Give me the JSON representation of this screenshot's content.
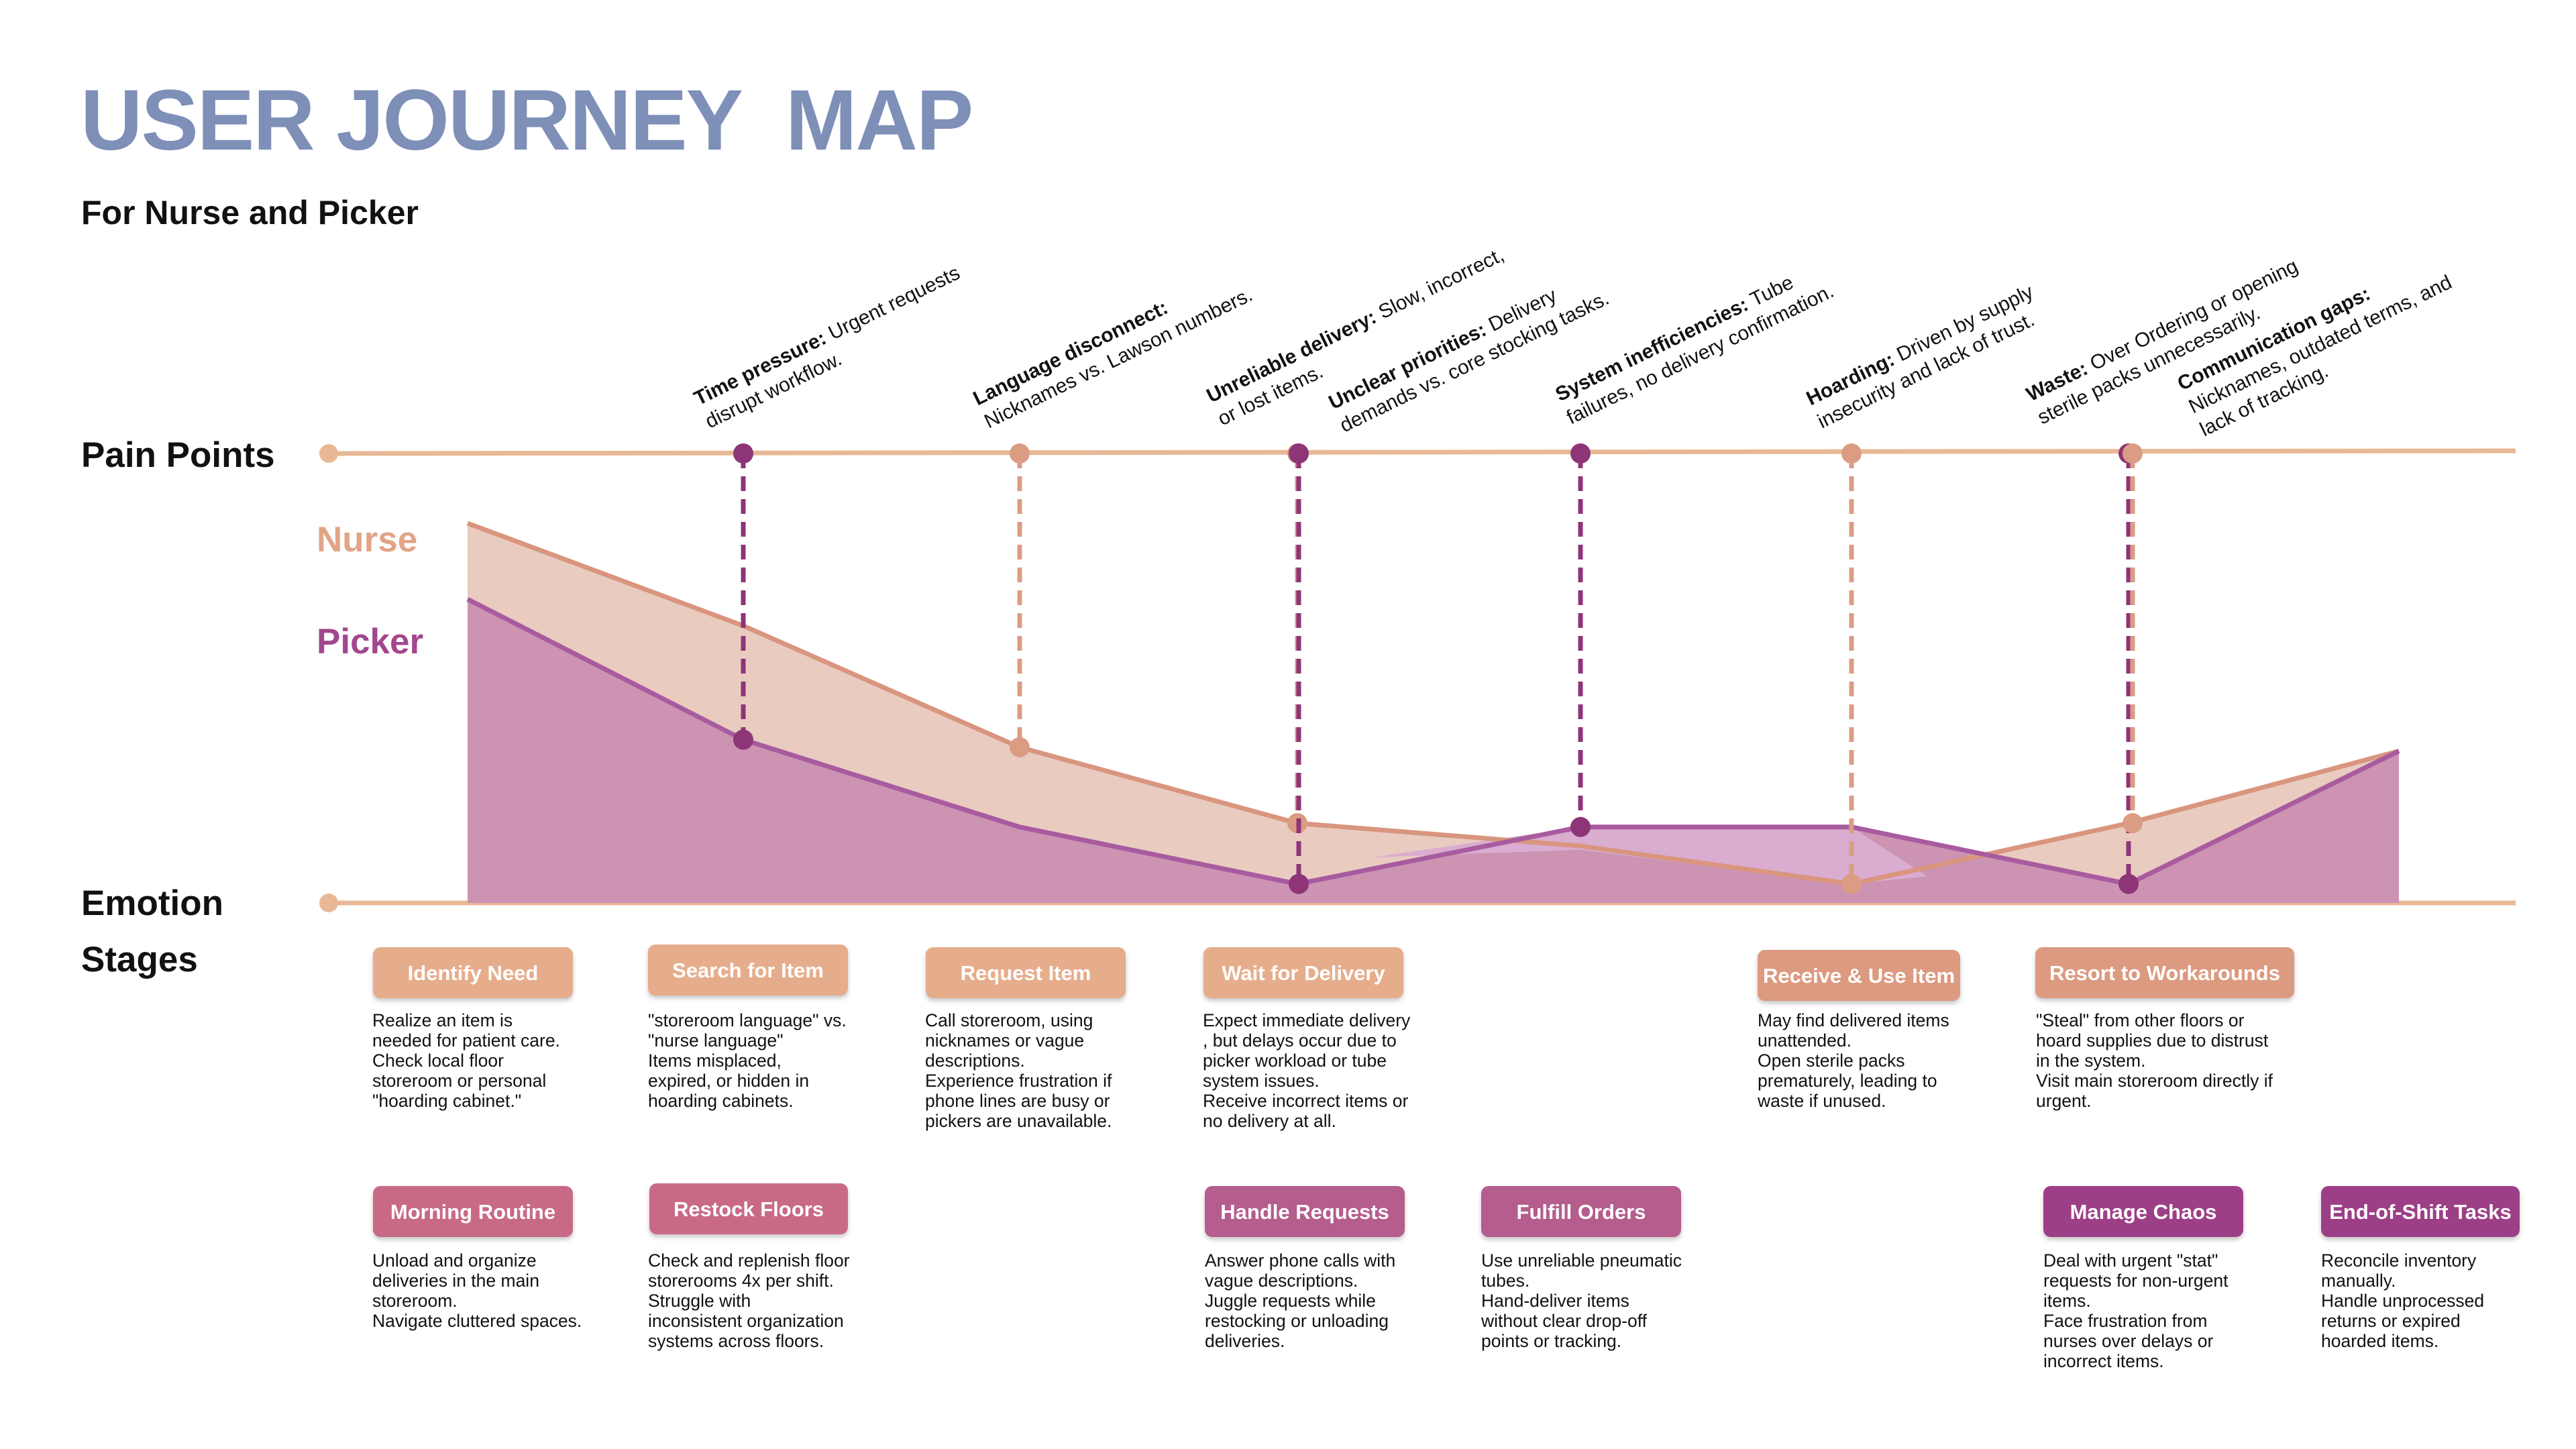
{
  "title": "USER JOURNEY  MAP",
  "subtitle": "For Nurse and Picker",
  "rows": {
    "pain_points": "Pain Points",
    "emotion": "Emotion",
    "stages": "Stages"
  },
  "legend": {
    "nurse": "Nurse",
    "picker": "Picker"
  },
  "colors": {
    "title": "#7e8fb8",
    "axis_line": "#e8b896",
    "nurse_fill": "#e9cbc0",
    "nurse_line": "#d9957e",
    "nurse_marker": "#db9c84",
    "picker_fill": "#cc93b3",
    "picker_raised_fill": "#d9acd0",
    "picker_line": "#a85b9f",
    "picker_marker": "#8e3578"
  },
  "chart_data": {
    "type": "area",
    "x": [
      1,
      2,
      3,
      4,
      5,
      6,
      7,
      8,
      9
    ],
    "y_meaning": "emotion level (0 = lowest, 1 = highest)",
    "series": [
      {
        "name": "Nurse",
        "values": [
          1.0,
          0.73,
          0.41,
          0.21,
          0.15,
          0.05,
          0.21,
          0.4
        ],
        "x": [
          1,
          2,
          3,
          4,
          5,
          6,
          7,
          8
        ]
      },
      {
        "name": "Picker",
        "values": [
          0.8,
          0.43,
          0.2,
          0.05,
          0.2,
          0.2,
          0.05,
          0.4
        ],
        "x": [
          1,
          2,
          3,
          4,
          5,
          6,
          7,
          8
        ]
      }
    ],
    "pain_markers": [
      {
        "pain": "Time pressure:",
        "series": "Picker",
        "x": 2
      },
      {
        "pain": "Language disconnect:",
        "series": "Nurse",
        "x": 3
      },
      {
        "pain": "Unreliable delivery:",
        "series": "Nurse",
        "x": 4
      },
      {
        "pain": "Unclear priorities:",
        "series": "Picker",
        "x": 4
      },
      {
        "pain": "System inefficiencies:",
        "series": "Picker",
        "x": 5
      },
      {
        "pain": "Hoarding:",
        "series": "Nurse",
        "x": 6
      },
      {
        "pain": "Waste:",
        "series": "Picker",
        "x": 7
      },
      {
        "pain": "Communication gaps:",
        "series": "Nurse",
        "x": 7
      }
    ]
  },
  "pain_points": [
    {
      "bold": "Time pressure:",
      "text": " Urgent requests",
      "line2": "disrupt workflow."
    },
    {
      "bold": "Language disconnect:",
      "text": "",
      "line2": "Nicknames vs. Lawson numbers."
    },
    {
      "bold": "Unreliable delivery:",
      "text": " Slow, incorrect,",
      "line2": "or lost items."
    },
    {
      "bold": "Unclear priorities:",
      "text": " Delivery",
      "line2": "demands vs. core stocking tasks."
    },
    {
      "bold": "System inefficiencies:",
      "text": " Tube",
      "line2": "failures, no delivery confirmation."
    },
    {
      "bold": "Hoarding:",
      "text": " Driven by supply",
      "line2": "insecurity and lack of trust."
    },
    {
      "bold": "Waste:",
      "text": " Over Ordering or opening",
      "line2": "sterile packs unnecessarily."
    },
    {
      "bold": "Communication gaps:",
      "text": "",
      "line2": "Nicknames, outdated terms, and",
      "line3": "lack of tracking."
    }
  ],
  "nurse_stages": [
    {
      "label": "Identify Need",
      "lines": [
        "Realize an item is",
        "needed for patient care.",
        "Check local floor",
        "storeroom or personal",
        "\"hoarding cabinet.\""
      ]
    },
    {
      "label": "Search for Item",
      "lines": [
        "\"storeroom language\" vs.",
        "\"nurse language\"",
        "Items misplaced,",
        "expired, or hidden in",
        "hoarding cabinets."
      ]
    },
    {
      "label": "Request Item",
      "lines": [
        "Call storeroom, using",
        "nicknames or vague",
        "descriptions.",
        "Experience frustration if",
        "phone lines are busy or",
        "pickers are unavailable."
      ]
    },
    {
      "label": "Wait for Delivery",
      "lines": [
        "Expect immediate delivery",
        ", but delays occur due to",
        "picker workload or tube",
        "system issues.",
        "Receive incorrect items or",
        "no delivery at all."
      ]
    },
    {
      "label": "Receive & Use Item",
      "lines": [
        "May find delivered items",
        "unattended.",
        "Open sterile packs",
        "prematurely, leading to",
        "waste if unused."
      ]
    },
    {
      "label": "Resort to Workarounds",
      "lines": [
        "\"Steal\" from other floors or",
        "hoard supplies due to distrust",
        "in the system.",
        "Visit main storeroom directly if",
        "urgent."
      ]
    }
  ],
  "picker_stages": [
    {
      "label": "Morning Routine",
      "lines": [
        "Unload and organize",
        "deliveries in the main",
        "storeroom.",
        "Navigate cluttered spaces."
      ]
    },
    {
      "label": "Restock Floors",
      "lines": [
        "Check and replenish floor",
        "storerooms 4x per shift.",
        "Struggle with",
        "inconsistent organization",
        "systems across floors."
      ]
    },
    {
      "label": "Handle Requests",
      "lines": [
        "Answer phone calls with",
        "vague descriptions.",
        "Juggle requests while",
        "restocking or unloading",
        "deliveries."
      ]
    },
    {
      "label": "Fulfill Orders",
      "lines": [
        "Use unreliable pneumatic",
        "tubes.",
        "Hand-deliver items",
        "without clear drop-off",
        "points or tracking."
      ]
    },
    {
      "label": "Manage Chaos",
      "lines": [
        "Deal with urgent \"stat\"",
        "requests for non-urgent",
        "items.",
        "Face frustration from",
        "nurses over delays or",
        "incorrect items."
      ]
    },
    {
      "label": "End-of-Shift Tasks",
      "lines": [
        "Reconcile inventory",
        "manually.",
        "Handle unprocessed",
        "returns or expired",
        "hoarded items."
      ]
    }
  ]
}
